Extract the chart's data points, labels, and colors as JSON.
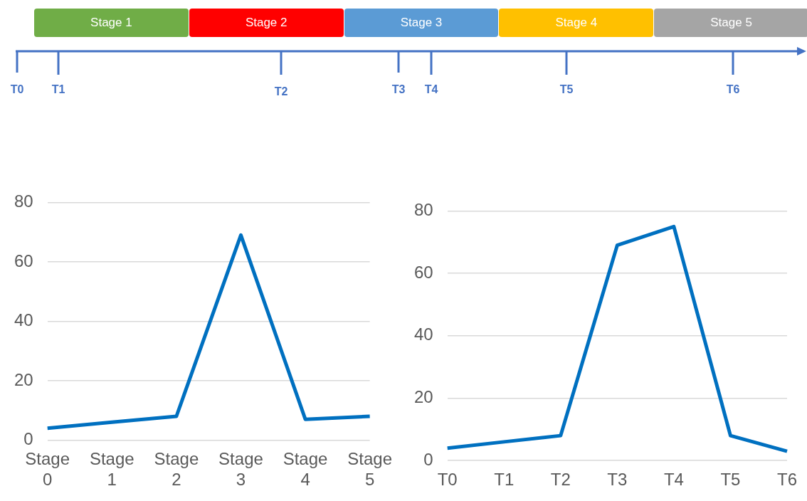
{
  "chart_data": [
    {
      "type": "other",
      "categories": [
        "Stage 1",
        "Stage 2",
        "Stage 3",
        "Stage 4",
        "Stage 5"
      ],
      "colors": [
        "#70ad47",
        "#ff0000",
        "#5b9bd5",
        "#ffc000",
        "#a5a5a5"
      ],
      "annotations": [
        "T0",
        "T1",
        "T2",
        "T3",
        "T4",
        "T5",
        "T6"
      ]
    },
    {
      "type": "line",
      "categories": [
        "Stage 0",
        "Stage 1",
        "Stage 2",
        "Stage 3",
        "Stage 4",
        "Stage 5"
      ],
      "series": [
        {
          "color": "#0070c0",
          "values": [
            4,
            6,
            8,
            69,
            7,
            8
          ]
        }
      ],
      "ylim": [
        0,
        80
      ],
      "yticks": [
        0,
        20,
        40,
        60,
        80
      ],
      "grid": "y",
      "legend": false
    },
    {
      "type": "line",
      "categories": [
        "T0",
        "T1",
        "T2",
        "T3",
        "T4",
        "T5",
        "T6"
      ],
      "series": [
        {
          "color": "#0070c0",
          "values": [
            4,
            6,
            8,
            69,
            75,
            8,
            3
          ]
        }
      ],
      "ylim": [
        0,
        80
      ],
      "yticks": [
        0,
        20,
        40,
        60,
        80
      ],
      "grid": "y",
      "legend": false
    }
  ]
}
